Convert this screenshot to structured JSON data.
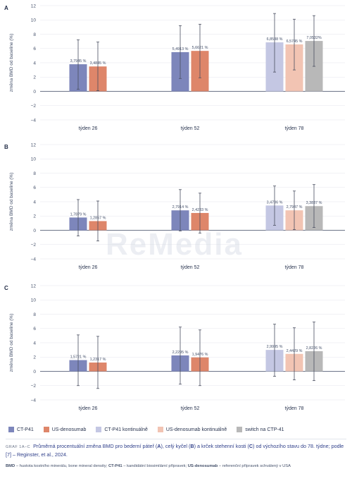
{
  "colors": {
    "CT-P41": "#7d86bb",
    "US-denosumab": "#de866a",
    "CT-P41 kontinuálně": "#c4c7e3",
    "US-denosumab kontinuálně": "#f2c4b3",
    "switch na CTP-41": "#b8b8b8"
  },
  "legend": [
    {
      "name": "CT-P41",
      "color": "#7d86bb"
    },
    {
      "name": "US-denosumab",
      "color": "#de866a"
    },
    {
      "name": "CT-P41 kontinuálně",
      "color": "#c4c7e3"
    },
    {
      "name": "US-denosumab kontinuálně",
      "color": "#f2c4b3"
    },
    {
      "name": "switch na CTP-41",
      "color": "#b8b8b8"
    }
  ],
  "watermark": "ReMedia",
  "caption": {
    "tag": "GRAF 1A–C",
    "title_part1": "Průměrná procentuální změna BMD pro bederní páteř (",
    "A": "A",
    "title_part2": "), celý kyčel (",
    "B": "B",
    "title_part3": ") a krček stehenní kosti (",
    "C": "C",
    "title_part4": ") od výchozího stavu do 78. týdne; podle [7] – Reginster, et al., 2024."
  },
  "footnote": {
    "bmd_key": "BMD",
    "bmd_text": " – hustota kostního minerálu, bone mineral density; ",
    "ct_key": "CT-P41",
    "ct_text": " – kandidátní biosimilární přípravek; ",
    "us_key": "US-denosumab",
    "us_text": " – referenční přípravek schválený v USA"
  },
  "chart_data": [
    {
      "panel": "A",
      "type": "bar",
      "ylabel": "změna BMD od baseline (%)",
      "ylim": [
        -4,
        12
      ],
      "yticks": [
        -4,
        -2,
        0,
        2,
        4,
        6,
        8,
        10,
        12
      ],
      "grid": true,
      "groups": [
        {
          "category": "týden 26",
          "bars": [
            {
              "series": "CT-P41",
              "value": 3.7945,
              "label": "3,7945 %",
              "err_low": 0.3,
              "err_high": 7.2
            },
            {
              "series": "US-denosumab",
              "value": 3.4845,
              "label": "3,4845 %",
              "err_low": 0.1,
              "err_high": 6.9
            }
          ]
        },
        {
          "category": "týden 52",
          "bars": [
            {
              "series": "CT-P41",
              "value": 5.4913,
              "label": "5,4913 %",
              "err_low": 1.8,
              "err_high": 9.2
            },
            {
              "series": "US-denosumab",
              "value": 5.6621,
              "label": "5,6621 %",
              "err_low": 1.9,
              "err_high": 9.4
            }
          ]
        },
        {
          "category": "týden 78",
          "bars": [
            {
              "series": "CT-P41 kontinuálně",
              "value": 6.8588,
              "label": "6,8588 %",
              "err_low": 2.7,
              "err_high": 10.9
            },
            {
              "series": "US-denosumab kontinuálně",
              "value": 6.5745,
              "label": "6,5745 %",
              "err_low": 3.0,
              "err_high": 10.1
            },
            {
              "series": "switch na CTP-41",
              "value": 7.0532,
              "label": "7,0532%",
              "err_low": 3.5,
              "err_high": 10.6
            }
          ]
        }
      ]
    },
    {
      "panel": "B",
      "type": "bar",
      "ylabel": "změna BMD od baseline (%)",
      "ylim": [
        -4,
        12
      ],
      "yticks": [
        -4,
        -2,
        0,
        2,
        4,
        6,
        8,
        10,
        12
      ],
      "grid": true,
      "groups": [
        {
          "category": "týden 26",
          "bars": [
            {
              "series": "CT-P41",
              "value": 1.7879,
              "label": "1,7879 %",
              "err_low": -0.8,
              "err_high": 4.3
            },
            {
              "series": "US-denosumab",
              "value": 1.2857,
              "label": "1,2857 %",
              "err_low": -1.5,
              "err_high": 4.1
            }
          ]
        },
        {
          "category": "týden 52",
          "bars": [
            {
              "series": "CT-P41",
              "value": 2.7914,
              "label": "2,7914 %",
              "err_low": -0.1,
              "err_high": 5.7
            },
            {
              "series": "US-denosumab",
              "value": 2.4233,
              "label": "2,4233 %",
              "err_low": -0.4,
              "err_high": 5.2
            }
          ]
        },
        {
          "category": "týden 78",
          "bars": [
            {
              "series": "CT-P41 kontinuálně",
              "value": 3.4706,
              "label": "3,4706 %",
              "err_low": 0.7,
              "err_high": 6.2
            },
            {
              "series": "US-denosumab kontinuálně",
              "value": 2.7947,
              "label": "2,7947 %",
              "err_low": 0.1,
              "err_high": 5.5
            },
            {
              "series": "switch na CTP-41",
              "value": 3.3837,
              "label": "3,3837 %",
              "err_low": 0.4,
              "err_high": 6.4
            }
          ]
        }
      ]
    },
    {
      "panel": "C",
      "type": "bar",
      "ylabel": "změna BMD od baseline (%)",
      "ylim": [
        -4,
        12
      ],
      "yticks": [
        -4,
        -2,
        0,
        2,
        4,
        6,
        8,
        10,
        12
      ],
      "grid": true,
      "groups": [
        {
          "category": "týden 26",
          "bars": [
            {
              "series": "CT-P41",
              "value": 1.5721,
              "label": "1,5721 %",
              "err_low": -2.0,
              "err_high": 5.1
            },
            {
              "series": "US-denosumab",
              "value": 1.2317,
              "label": "1,2317 %",
              "err_low": -2.4,
              "err_high": 4.9
            }
          ]
        },
        {
          "category": "týden 52",
          "bars": [
            {
              "series": "CT-P41",
              "value": 2.2295,
              "label": "2,2295 %",
              "err_low": -1.8,
              "err_high": 6.2
            },
            {
              "series": "US-denosumab",
              "value": 1.9476,
              "label": "1,9476 %",
              "err_low": -2.0,
              "err_high": 5.8
            }
          ]
        },
        {
          "category": "týden 78",
          "bars": [
            {
              "series": "CT-P41 kontinuálně",
              "value": 2.9995,
              "label": "2,9995 %",
              "err_low": -0.7,
              "err_high": 6.6
            },
            {
              "series": "US-denosumab kontinuálně",
              "value": 2.4429,
              "label": "2,4429 %",
              "err_low": -1.2,
              "err_high": 6.1
            },
            {
              "series": "switch na CTP-41",
              "value": 2.8226,
              "label": "2,8226 %",
              "err_low": -1.3,
              "err_high": 6.9
            }
          ]
        }
      ]
    }
  ]
}
